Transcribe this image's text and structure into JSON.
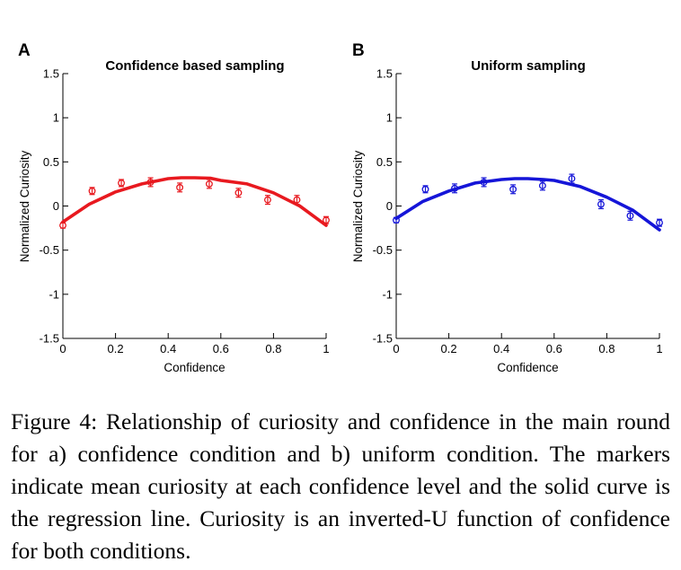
{
  "chart_data": [
    {
      "type": "scatter",
      "panel_label": "A",
      "title": "Confidence based sampling",
      "xlabel": "Confidence",
      "ylabel": "Normalized Curiosity",
      "xlim": [
        0,
        1
      ],
      "ylim": [
        -1.5,
        1.5
      ],
      "xticks": [
        "0",
        "0.2",
        "0.4",
        "0.6",
        "0.8",
        "1"
      ],
      "yticks": [
        "-1.5",
        "-1",
        "-0.5",
        "0",
        "0.5",
        "1",
        "1.5"
      ],
      "color": "#e8191f",
      "markers": {
        "x": [
          0,
          0.111,
          0.222,
          0.333,
          0.444,
          0.556,
          0.667,
          0.778,
          0.889,
          1.0
        ],
        "y": [
          -0.22,
          0.17,
          0.26,
          0.27,
          0.21,
          0.25,
          0.15,
          0.07,
          0.07,
          -0.16
        ],
        "err": [
          0.03,
          0.04,
          0.04,
          0.05,
          0.05,
          0.05,
          0.05,
          0.05,
          0.05,
          0.04
        ]
      },
      "regression": {
        "x": [
          0,
          0.1,
          0.2,
          0.3,
          0.4,
          0.45,
          0.5,
          0.56,
          0.6,
          0.7,
          0.8,
          0.9,
          1.0
        ],
        "y": [
          -0.18,
          0.02,
          0.16,
          0.25,
          0.31,
          0.32,
          0.32,
          0.315,
          0.29,
          0.25,
          0.15,
          0.0,
          -0.22
        ]
      },
      "grid": false,
      "legend": "none"
    },
    {
      "type": "scatter",
      "panel_label": "B",
      "title": "Uniform sampling",
      "xlabel": "Confidence",
      "ylabel": "Normalized Curiosity",
      "xlim": [
        0,
        1
      ],
      "ylim": [
        -1.5,
        1.5
      ],
      "xticks": [
        "0",
        "0.2",
        "0.4",
        "0.6",
        "0.8",
        "1"
      ],
      "yticks": [
        "-1.5",
        "-1",
        "-0.5",
        "0",
        "0.5",
        "1",
        "1.5"
      ],
      "color": "#1515d8",
      "markers": {
        "x": [
          0,
          0.111,
          0.222,
          0.333,
          0.444,
          0.556,
          0.667,
          0.778,
          0.889,
          1.0
        ],
        "y": [
          -0.16,
          0.19,
          0.2,
          0.27,
          0.19,
          0.23,
          0.31,
          0.02,
          -0.11,
          -0.19
        ],
        "err": [
          0.03,
          0.04,
          0.05,
          0.05,
          0.05,
          0.05,
          0.05,
          0.05,
          0.05,
          0.04
        ]
      },
      "regression": {
        "x": [
          0,
          0.1,
          0.2,
          0.3,
          0.4,
          0.45,
          0.5,
          0.56,
          0.6,
          0.7,
          0.8,
          0.9,
          1.0
        ],
        "y": [
          -0.14,
          0.05,
          0.17,
          0.26,
          0.3,
          0.31,
          0.31,
          0.3,
          0.29,
          0.22,
          0.1,
          -0.05,
          -0.27
        ]
      },
      "grid": false,
      "legend": "none"
    }
  ],
  "caption": "Figure 4: Relationship of curiosity and confidence in the main round for a) confidence condition and b) uniform condition. The markers indicate mean curiosity at each confidence level and the solid curve is the regression line.  Curiosity is an inverted-U function of confidence for both conditions."
}
